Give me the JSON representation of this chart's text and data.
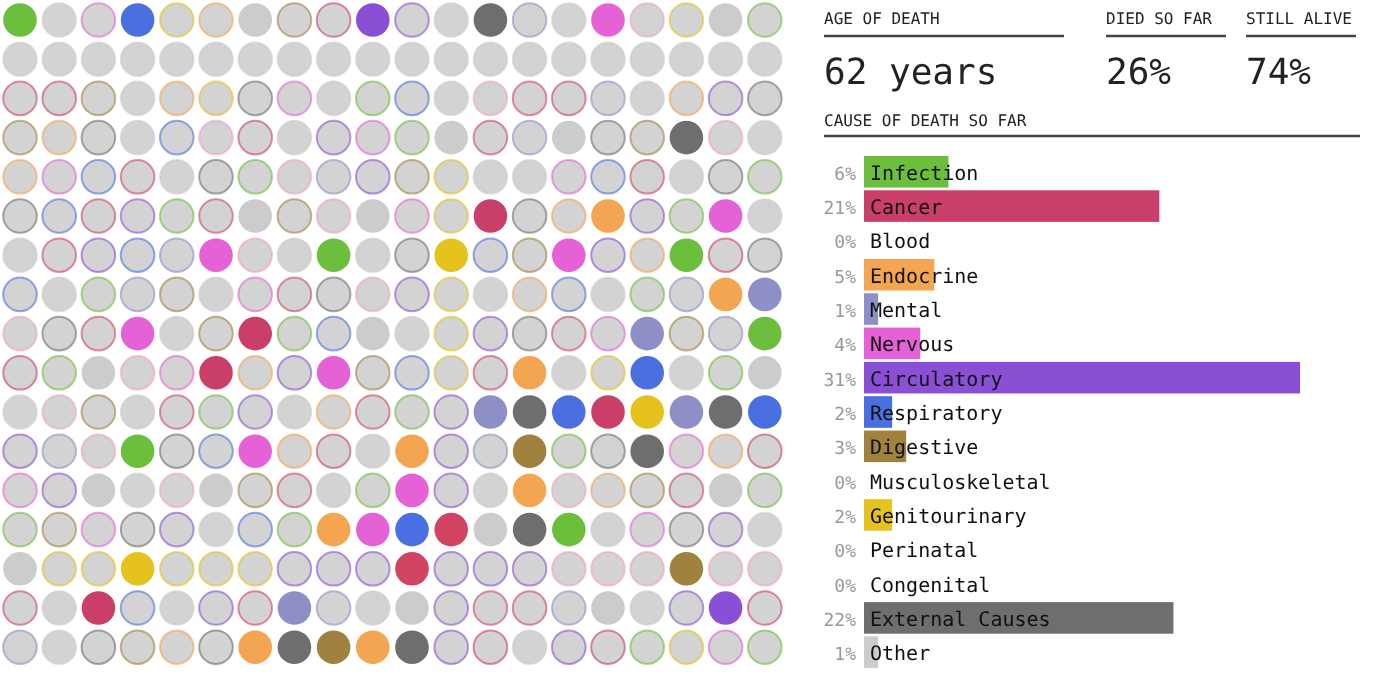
{
  "chart_data": {
    "type": "bar",
    "orientation": "horizontal",
    "title": "CAUSE OF DEATH SO FAR",
    "annotations": [
      "AGE OF DEATH",
      "62 years",
      "DIED SO FAR",
      "26%",
      "STILL ALIVE",
      "74%"
    ],
    "categories": [
      "Infection",
      "Cancer",
      "Blood",
      "Endocrine",
      "Mental",
      "Nervous",
      "Circulatory",
      "Respiratory",
      "Digestive",
      "Musculoskeletal",
      "Genitourinary",
      "Perinatal",
      "Congenital",
      "External Causes",
      "Other"
    ],
    "values": [
      6,
      21,
      0,
      5,
      1,
      4,
      31,
      2,
      3,
      0,
      2,
      0,
      0,
      22,
      1
    ],
    "value_labels": [
      "6%",
      "21%",
      "0%",
      "5%",
      "1%",
      "4%",
      "31%",
      "2%",
      "3%",
      "0%",
      "2%",
      "0%",
      "0%",
      "22%",
      "1%"
    ],
    "colors": [
      "#6cbf3c",
      "#c93f6a",
      "#f2a0c0",
      "#f4a552",
      "#8f8fc8",
      "#e462d6",
      "#8b4fd6",
      "#4a6fe0",
      "#a0823e",
      "#d04462",
      "#e6c21e",
      "#cccccc",
      "#cccccc",
      "#6e6e6e",
      "#cccccc"
    ]
  }
}
